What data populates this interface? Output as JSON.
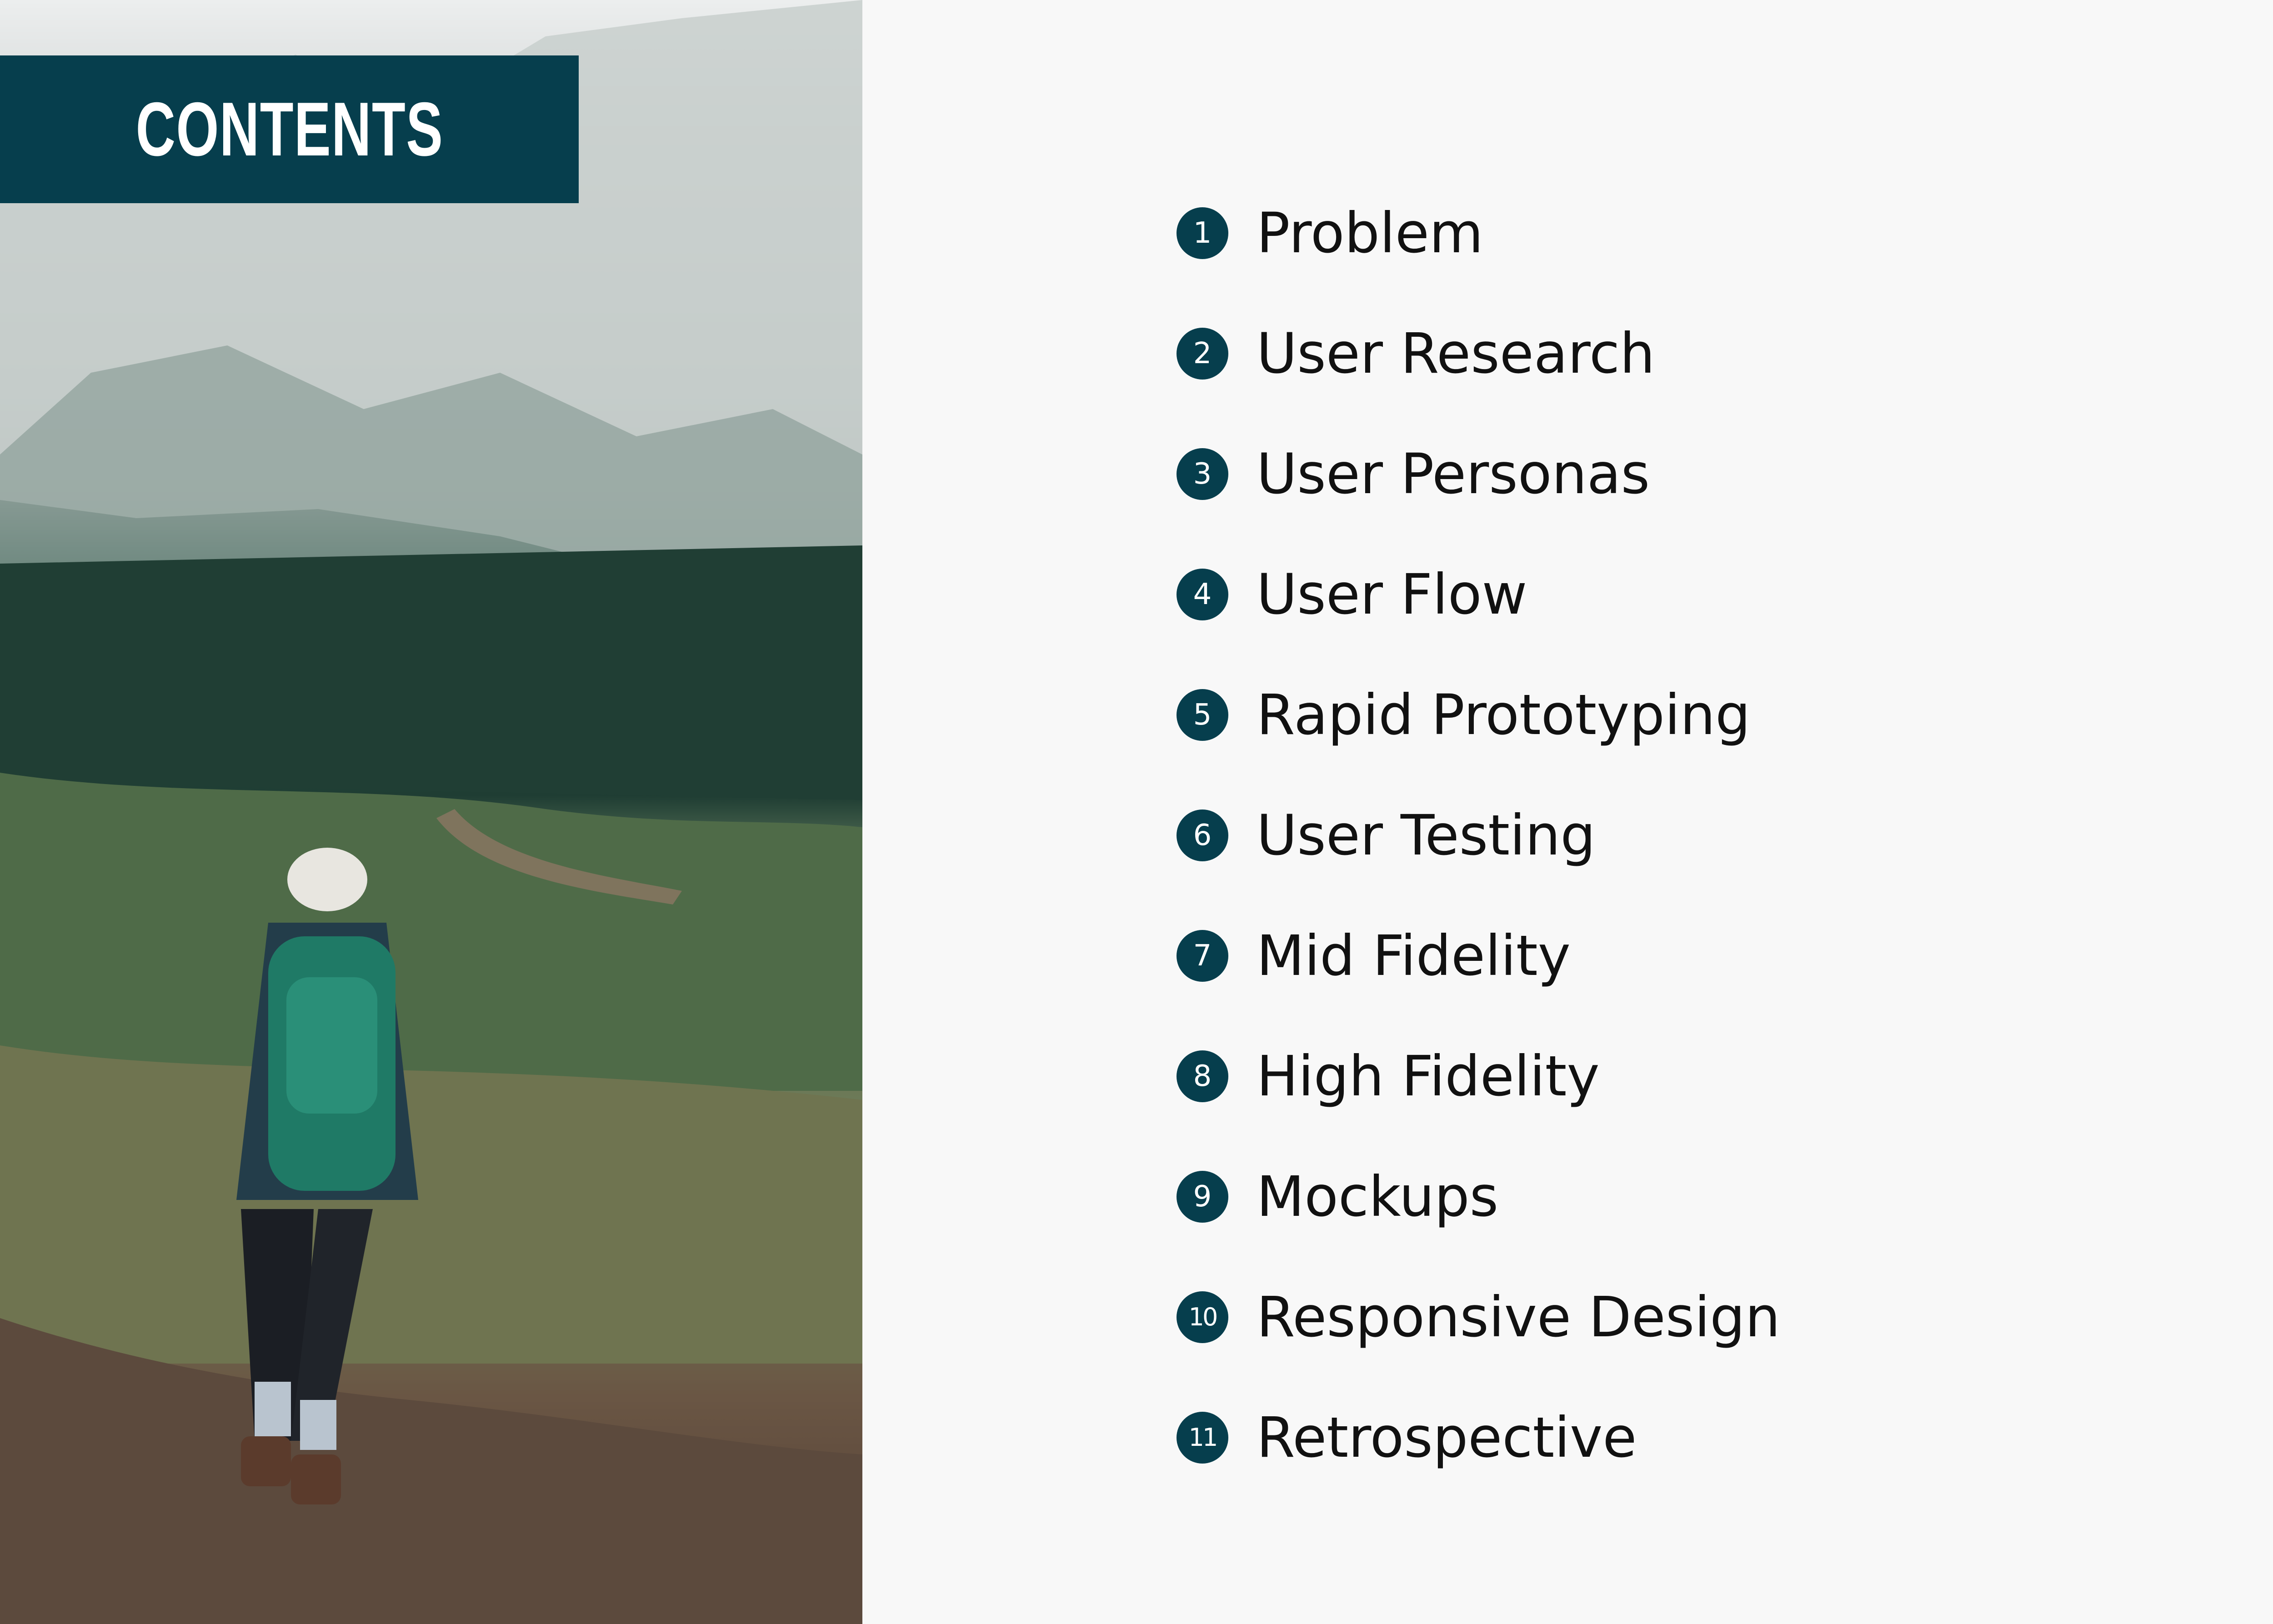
{
  "header": {
    "title": "CONTENTS"
  },
  "colors": {
    "accent": "#063e4d",
    "background": "#f8f8f8",
    "text": "#111111"
  },
  "photo": {
    "description_icon": "hiker-photo"
  },
  "toc": [
    {
      "number": "1",
      "label": "Problem"
    },
    {
      "number": "2",
      "label": "User Research"
    },
    {
      "number": "3",
      "label": "User Personas"
    },
    {
      "number": "4",
      "label": "User Flow"
    },
    {
      "number": "5",
      "label": "Rapid Prototyping"
    },
    {
      "number": "6",
      "label": "User Testing"
    },
    {
      "number": "7",
      "label": "Mid Fidelity"
    },
    {
      "number": "8",
      "label": "High Fidelity"
    },
    {
      "number": "9",
      "label": "Mockups"
    },
    {
      "number": "10",
      "label": "Responsive Design"
    },
    {
      "number": "11",
      "label": "Retrospective"
    }
  ]
}
